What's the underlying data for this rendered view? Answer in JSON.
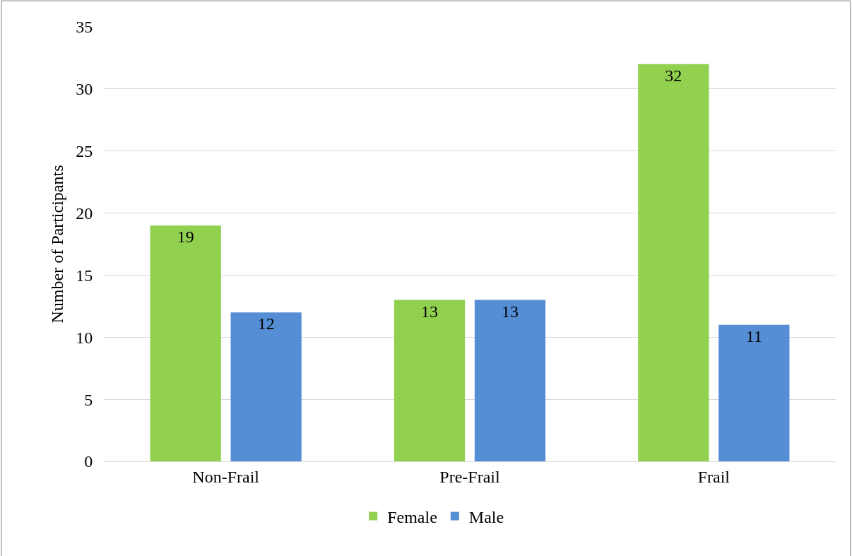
{
  "chart_data": {
    "type": "bar",
    "ylabel": "Number of Participants",
    "categories": [
      "Non-Frail",
      "Pre-Frail",
      "Frail"
    ],
    "series": [
      {
        "name": "Female",
        "color": "#92d050",
        "values": [
          19,
          13,
          32
        ]
      },
      {
        "name": "Male",
        "color": "#558ed5",
        "values": [
          12,
          13,
          11
        ]
      }
    ],
    "ylim": [
      0,
      35
    ],
    "yticks": [
      0,
      5,
      10,
      15,
      20,
      25,
      30,
      35
    ],
    "grid": "y",
    "legend": "bottom",
    "data_labels": true
  }
}
